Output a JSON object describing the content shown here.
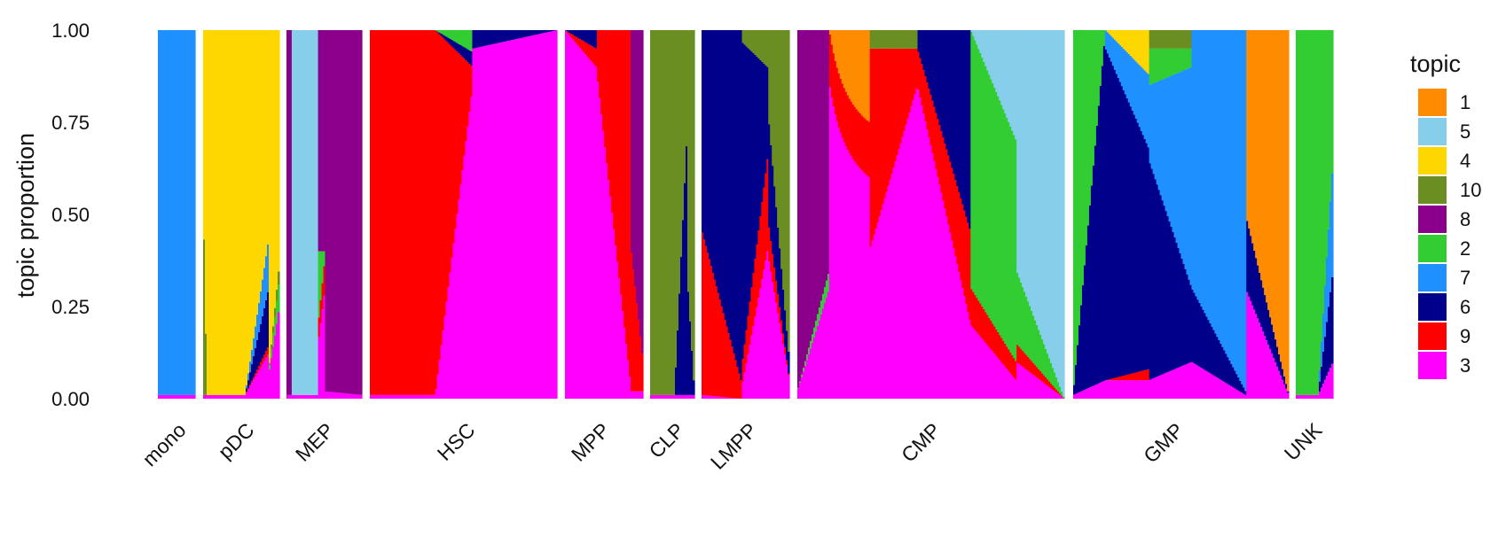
{
  "chart_data": {
    "type": "structure-plot (stacked bar)",
    "ylabel": "topic proportion",
    "ylim": [
      0,
      1
    ],
    "yticks": [
      "0.00",
      "0.25",
      "0.50",
      "0.75",
      "1.00"
    ],
    "legend": {
      "title": "topic",
      "placement": "right",
      "entries": [
        {
          "label": "1",
          "color": "#FF8C00"
        },
        {
          "label": "5",
          "color": "#87CEEB"
        },
        {
          "label": "4",
          "color": "#FFD700"
        },
        {
          "label": "10",
          "color": "#6B8E23"
        },
        {
          "label": "8",
          "color": "#8B008B"
        },
        {
          "label": "2",
          "color": "#32CD32"
        },
        {
          "label": "7",
          "color": "#1E90FF"
        },
        {
          "label": "6",
          "color": "#00008B"
        },
        {
          "label": "9",
          "color": "#FF0000"
        },
        {
          "label": "3",
          "color": "#FF00FF"
        }
      ]
    },
    "stack_order_bottom_to_top": [
      "3",
      "9",
      "6",
      "7",
      "2",
      "8",
      "10",
      "4",
      "5",
      "1"
    ],
    "groups": [
      {
        "label": "mono",
        "segments": [
          {
            "from": 0.0,
            "to": 1.0,
            "topics": {
              "3": [
                0.01,
                0.01
              ],
              "7": [
                0.99,
                0.99
              ]
            }
          }
        ]
      },
      {
        "label": "pDC",
        "segments": [
          {
            "from": 0.0,
            "to": 0.05,
            "topics": {
              "10": [
                0.55,
                0.0
              ],
              "4": [
                0.44,
                0.99
              ],
              "3": [
                0.01,
                0.01
              ]
            }
          },
          {
            "from": 0.05,
            "to": 0.55,
            "topics": {
              "3": [
                0.01,
                0.01
              ],
              "4": [
                0.99,
                0.99
              ]
            }
          },
          {
            "from": 0.55,
            "to": 0.85,
            "topics": {
              "3": [
                0.01,
                0.12
              ],
              "9": [
                0.0,
                0.02
              ],
              "6": [
                0.0,
                0.15
              ],
              "7": [
                0.0,
                0.13
              ],
              "4": [
                0.99,
                0.58
              ]
            }
          },
          {
            "from": 0.85,
            "to": 1.0,
            "topics": {
              "3": [
                0.05,
                0.25
              ],
              "2": [
                0.0,
                0.08
              ],
              "10": [
                0.0,
                0.04
              ],
              "4": [
                0.95,
                0.63
              ]
            }
          }
        ]
      },
      {
        "label": "MEP",
        "segments": [
          {
            "from": 0.0,
            "to": 0.08,
            "topics": {
              "3": [
                0.01,
                0.01
              ],
              "8": [
                0.99,
                0.99
              ]
            }
          },
          {
            "from": 0.08,
            "to": 0.42,
            "topics": {
              "3": [
                0.01,
                0.01
              ],
              "5": [
                0.99,
                0.99
              ]
            }
          },
          {
            "from": 0.42,
            "to": 0.5,
            "topics": {
              "3": [
                0.15,
                0.28
              ],
              "9": [
                0.05,
                0.08
              ],
              "2": [
                0.2,
                0.04
              ],
              "8": [
                0.6,
                0.6
              ]
            }
          },
          {
            "from": 0.5,
            "to": 1.0,
            "topics": {
              "3": [
                0.02,
                0.01
              ],
              "8": [
                0.98,
                0.99
              ]
            }
          }
        ]
      },
      {
        "label": "HSC",
        "segments": [
          {
            "from": 0.0,
            "to": 0.35,
            "topics": {
              "3": [
                0.01,
                0.01
              ],
              "9": [
                0.99,
                0.99
              ]
            }
          },
          {
            "from": 0.35,
            "to": 0.55,
            "topics": {
              "3": [
                0.01,
                0.85
              ],
              "9": [
                0.99,
                0.05
              ],
              "6": [
                0.0,
                0.04
              ],
              "2": [
                0.0,
                0.06
              ]
            }
          },
          {
            "from": 0.55,
            "to": 1.0,
            "topics": {
              "3": [
                0.95,
                1.0
              ],
              "6": [
                0.05,
                0.0
              ]
            }
          }
        ]
      },
      {
        "label": "MPP",
        "segments": [
          {
            "from": 0.0,
            "to": 0.4,
            "topics": {
              "3": [
                1.0,
                0.9
              ],
              "6": [
                0.0,
                0.05
              ],
              "9": [
                0.0,
                0.05
              ]
            }
          },
          {
            "from": 0.4,
            "to": 0.85,
            "topics": {
              "3": [
                0.9,
                0.02
              ],
              "9": [
                0.1,
                0.98
              ]
            }
          },
          {
            "from": 0.85,
            "to": 1.0,
            "topics": {
              "3": [
                0.02,
                0.02
              ],
              "8": [
                0.6,
                0.9
              ],
              "9": [
                0.38,
                0.08
              ]
            }
          }
        ]
      },
      {
        "label": "CLP",
        "segments": [
          {
            "from": 0.0,
            "to": 0.55,
            "topics": {
              "3": [
                0.01,
                0.01
              ],
              "10": [
                0.99,
                0.99
              ]
            }
          },
          {
            "from": 0.55,
            "to": 0.85,
            "topics": {
              "3": [
                0.01,
                0.01
              ],
              "6": [
                0.0,
                0.75
              ],
              "10": [
                0.99,
                0.24
              ]
            }
          },
          {
            "from": 0.85,
            "to": 1.0,
            "topics": {
              "3": [
                0.01,
                0.01
              ],
              "6": [
                0.3,
                0.0
              ],
              "10": [
                0.69,
                0.99
              ]
            }
          }
        ]
      },
      {
        "label": "LMPP",
        "segments": [
          {
            "from": 0.0,
            "to": 0.45,
            "topics": {
              "3": [
                0.01,
                0.0
              ],
              "9": [
                0.45,
                0.05
              ],
              "6": [
                0.54,
                0.95
              ]
            }
          },
          {
            "from": 0.45,
            "to": 0.75,
            "topics": {
              "3": [
                0.02,
                0.4
              ],
              "9": [
                0.05,
                0.25
              ],
              "6": [
                0.9,
                0.25
              ],
              "10": [
                0.03,
                0.1
              ]
            }
          },
          {
            "from": 0.75,
            "to": 1.0,
            "topics": {
              "3": [
                0.4,
                0.05
              ],
              "9": [
                0.1,
                0.0
              ],
              "6": [
                0.3,
                0.05
              ],
              "10": [
                0.2,
                0.9
              ]
            }
          }
        ]
      },
      {
        "label": "CMP",
        "segments": [
          {
            "from": 0.0,
            "to": 0.12,
            "topics": {
              "3": [
                0.02,
                0.3
              ],
              "2": [
                0.0,
                0.05
              ],
              "8": [
                0.98,
                0.65
              ]
            }
          },
          {
            "from": 0.12,
            "to": 0.27,
            "topics": {
              "3": [
                0.3,
                0.6
              ],
              "9": [
                0.05,
                0.15
              ],
              "1": [
                0.0,
                0.25
              ]
            }
          },
          {
            "from": 0.27,
            "to": 0.45,
            "topics": {
              "3": [
                0.4,
                0.85
              ],
              "9": [
                0.55,
                0.1
              ],
              "10": [
                0.05,
                0.05
              ]
            }
          },
          {
            "from": 0.45,
            "to": 0.65,
            "topics": {
              "3": [
                0.85,
                0.2
              ],
              "9": [
                0.1,
                0.25
              ],
              "6": [
                0.05,
                0.55
              ]
            }
          },
          {
            "from": 0.65,
            "to": 0.82,
            "topics": {
              "3": [
                0.2,
                0.05
              ],
              "9": [
                0.1,
                0.05
              ],
              "2": [
                0.7,
                0.6
              ],
              "5": [
                0.0,
                0.3
              ]
            }
          },
          {
            "from": 0.82,
            "to": 1.0,
            "topics": {
              "3": [
                0.1,
                0.0
              ],
              "9": [
                0.05,
                0.0
              ],
              "2": [
                0.2,
                0.0
              ],
              "5": [
                0.65,
                1.0
              ]
            }
          }
        ]
      },
      {
        "label": "GMP",
        "segments": [
          {
            "from": 0.0,
            "to": 0.15,
            "topics": {
              "3": [
                0.01,
                0.05
              ],
              "6": [
                0.0,
                0.95
              ],
              "2": [
                0.99,
                0.0
              ]
            }
          },
          {
            "from": 0.15,
            "to": 0.35,
            "topics": {
              "3": [
                0.05,
                0.05
              ],
              "9": [
                0.0,
                0.03
              ],
              "6": [
                0.9,
                0.6
              ],
              "7": [
                0.05,
                0.2
              ],
              "4": [
                0.0,
                0.12
              ]
            }
          },
          {
            "from": 0.35,
            "to": 0.55,
            "topics": {
              "3": [
                0.05,
                0.1
              ],
              "6": [
                0.6,
                0.2
              ],
              "7": [
                0.2,
                0.6
              ],
              "10": [
                0.05,
                0.05
              ],
              "2": [
                0.1,
                0.05
              ]
            }
          },
          {
            "from": 0.55,
            "to": 0.8,
            "topics": {
              "3": [
                0.1,
                0.01
              ],
              "6": [
                0.2,
                0.01
              ],
              "7": [
                0.7,
                0.98
              ]
            }
          },
          {
            "from": 0.8,
            "to": 1.0,
            "topics": {
              "3": [
                0.3,
                0.01
              ],
              "6": [
                0.2,
                0.0
              ],
              "1": [
                0.5,
                0.99
              ]
            }
          }
        ]
      },
      {
        "label": "UNK",
        "segments": [
          {
            "from": 0.0,
            "to": 0.6,
            "topics": {
              "3": [
                0.01,
                0.01
              ],
              "2": [
                0.99,
                0.99
              ]
            }
          },
          {
            "from": 0.6,
            "to": 1.0,
            "topics": {
              "3": [
                0.01,
                0.1
              ],
              "6": [
                0.0,
                0.25
              ],
              "7": [
                0.0,
                0.3
              ],
              "2": [
                0.99,
                0.35
              ]
            }
          }
        ]
      }
    ]
  }
}
